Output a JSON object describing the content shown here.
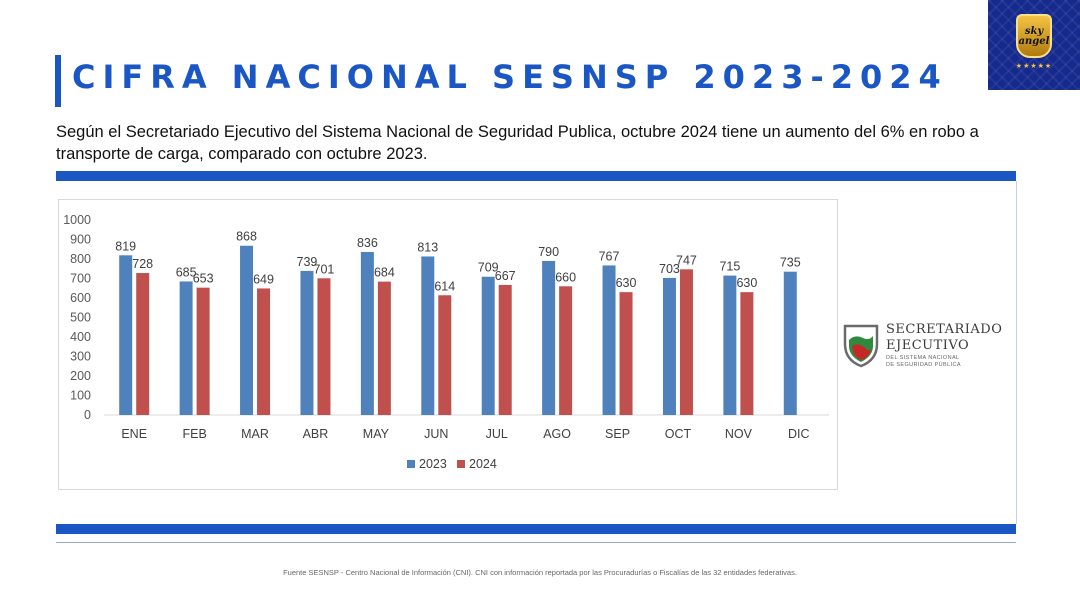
{
  "header": {
    "title": "CIFRA NACIONAL SESNSP 2023-2024",
    "subtitle": "Según el Secretariado Ejecutivo del Sistema Nacional de Seguridad Publica, octubre 2024 tiene un aumento del 6% en robo a transporte de carga, comparado con octubre 2023."
  },
  "logo": {
    "text": "sky angel",
    "stars": "★★★★★",
    "colors": {
      "background": "#152a8c",
      "badge": "#f3c344"
    }
  },
  "sesnsp": {
    "line1": "SECRETARIADO",
    "line2": "EJECUTIVO",
    "line3": "DEL SISTEMA NACIONAL",
    "line4": "DE SEGURIDAD PÚBLICA"
  },
  "footer": {
    "text": "Fuente SESNSP - Centro Nacional de Información (CNI). CNI con información reportada por las Procuradurías o Fiscalías de las 32 entidades  federativas."
  },
  "chart_data": {
    "type": "bar",
    "categories": [
      "ENE",
      "FEB",
      "MAR",
      "ABR",
      "MAY",
      "JUN",
      "JUL",
      "AGO",
      "SEP",
      "OCT",
      "NOV",
      "DIC"
    ],
    "series": [
      {
        "name": "2023",
        "color": "#4f81bd",
        "values": [
          819,
          685,
          868,
          739,
          836,
          813,
          709,
          790,
          767,
          703,
          715,
          735
        ]
      },
      {
        "name": "2024",
        "color": "#c0504d",
        "values": [
          728,
          653,
          649,
          701,
          684,
          614,
          667,
          660,
          630,
          747,
          630,
          null
        ]
      }
    ],
    "yticks": [
      "0",
      "100",
      "200",
      "300",
      "400",
      "500",
      "600",
      "700",
      "800",
      "900",
      "1000"
    ],
    "ylim": [
      0,
      1000
    ],
    "grid": false,
    "legend": "bottom"
  }
}
